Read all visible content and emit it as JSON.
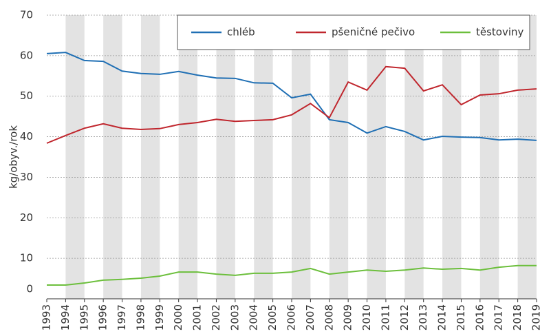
{
  "chart_data": {
    "type": "line",
    "y_label": "kg/obyv./rok",
    "x": [
      1993,
      1994,
      1995,
      1996,
      1997,
      1998,
      1999,
      2000,
      2001,
      2002,
      2003,
      2004,
      2005,
      2006,
      2007,
      2008,
      2009,
      2010,
      2011,
      2012,
      2013,
      2014,
      2015,
      2016,
      2017,
      2018,
      2019
    ],
    "xlim": [
      1993,
      2019
    ],
    "xticks": [
      1993,
      1994,
      1995,
      1996,
      1997,
      1998,
      1999,
      2000,
      2001,
      2002,
      2003,
      2004,
      2005,
      2006,
      2007,
      2008,
      2009,
      2010,
      2011,
      2012,
      2013,
      2014,
      2015,
      2016,
      2017,
      2018,
      2019
    ],
    "ylim": [
      0,
      70
    ],
    "yticks": [
      0,
      10,
      20,
      30,
      40,
      50,
      60,
      70
    ],
    "grid": true,
    "legend": "top",
    "series": [
      {
        "name": "chléb",
        "color": "#1f6fb4",
        "values": [
          60.5,
          60.8,
          58.8,
          58.6,
          56.2,
          55.6,
          55.4,
          56.1,
          55.2,
          54.5,
          54.4,
          53.3,
          53.2,
          49.6,
          50.5,
          44.2,
          43.5,
          40.9,
          42.5,
          41.3,
          39.2,
          40.1,
          39.9,
          39.8,
          39.2,
          39.4,
          39.1
        ]
      },
      {
        "name": "pšeničné pečivo",
        "color": "#c0262d",
        "values": [
          38.4,
          40.3,
          42.1,
          43.2,
          42.1,
          41.8,
          42.0,
          43.0,
          43.5,
          44.3,
          43.8,
          44.0,
          44.2,
          45.4,
          48.2,
          44.7,
          53.5,
          51.5,
          57.3,
          56.9,
          51.3,
          52.8,
          47.9,
          50.3,
          50.6,
          51.5,
          51.8
        ]
      },
      {
        "name": "těstoviny",
        "color": "#6cbf3c",
        "values": [
          3.4,
          3.4,
          3.9,
          4.6,
          4.8,
          5.1,
          5.6,
          6.6,
          6.6,
          6.1,
          5.8,
          6.3,
          6.3,
          6.6,
          7.5,
          6.1,
          6.6,
          7.1,
          6.8,
          7.1,
          7.6,
          7.3,
          7.5,
          7.1,
          7.8,
          8.2,
          8.2
        ]
      }
    ]
  }
}
